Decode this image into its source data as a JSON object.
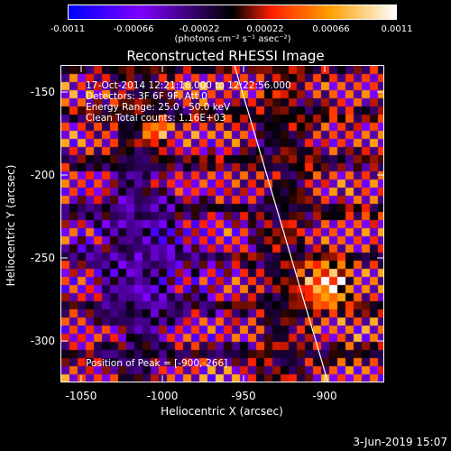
{
  "colorbar": {
    "ticks": [
      "-0.0011",
      "-0.00066",
      "-0.00022",
      "0.00022",
      "0.00066",
      "0.0011"
    ],
    "units": "(photons cm⁻² s⁻¹ asec⁻²)"
  },
  "title": "Reconstructed RHESSI Image",
  "info": {
    "line1": "17-Oct-2014 12:21:16.000 to 12:22:56.000",
    "line2": "Detectors: 3F 6F 9F, Att 0",
    "line3": "Energy Range: 25.0 - 50.0 keV",
    "line4": "Clean     Total counts: 1.16E+03",
    "peak": "Position of Peak = [-900,-266]"
  },
  "x_axis": {
    "label": "Heliocentric X (arcsec)",
    "ticks": [
      "-1050",
      "-1000",
      "-950",
      "-900"
    ]
  },
  "y_axis": {
    "label": "Heliocentric Y (arcsec)",
    "ticks": [
      "-150",
      "-200",
      "-250",
      "-300"
    ]
  },
  "timestamp": "3-Jun-2019 15:07",
  "chart_data": {
    "type": "heatmap",
    "title": "Reconstructed RHESSI Image",
    "xlabel": "Heliocentric X (arcsec)",
    "ylabel": "Heliocentric Y (arcsec)",
    "xlim": [
      -1063,
      -866
    ],
    "ylim": [
      -323,
      -135
    ],
    "value_range": [
      -0.0011,
      0.0011
    ],
    "peak": [
      -900,
      -266
    ],
    "colormap": [
      "#0000ff",
      "#8000ff",
      "#000000",
      "#ff2000",
      "#ffa000",
      "#ffffff"
    ],
    "limb_line": [
      [
        -957,
        -135
      ],
      [
        -900,
        -323
      ]
    ]
  }
}
